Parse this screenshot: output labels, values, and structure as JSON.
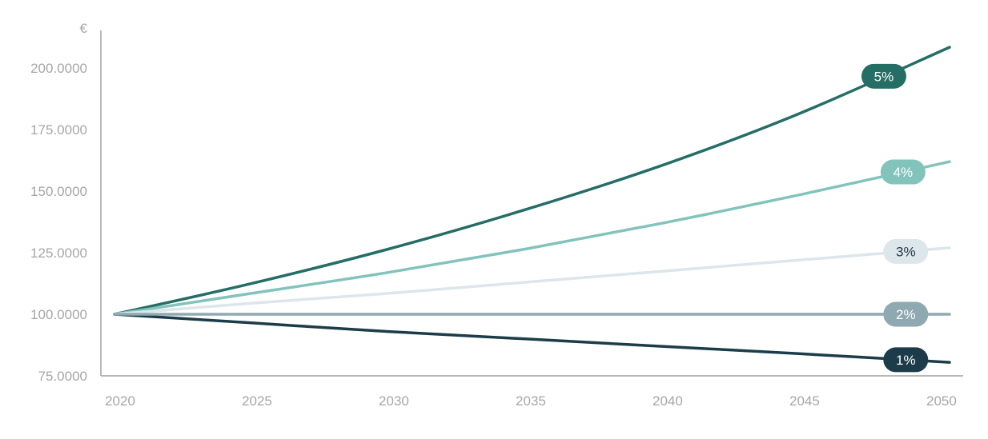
{
  "chart_data": {
    "type": "line",
    "y_unit": "€",
    "x_ticks": [
      "2020",
      "2025",
      "2030",
      "2035",
      "2040",
      "2045",
      "2050"
    ],
    "y_ticks": [
      "75.0000",
      "100.0000",
      "125.0000",
      "150.0000",
      "175.0000",
      "200.0000"
    ],
    "xlim": [
      2020,
      2050.5
    ],
    "ylim": [
      75000,
      216000
    ],
    "x": [
      2020,
      2025,
      2030,
      2035,
      2040,
      2045,
      2050.5
    ],
    "series": [
      {
        "name": "5%",
        "color": "#256e66",
        "label_color": "#ffffff",
        "label_x": 2048.1,
        "values": [
          100000,
          112500,
          126500,
          142500,
          160500,
          181500,
          208500
        ]
      },
      {
        "name": "4%",
        "color": "#82c4bb",
        "label_color": "#ffffff",
        "label_x": 2048.8,
        "values": [
          100000,
          108500,
          117000,
          126500,
          137000,
          148500,
          162000
        ]
      },
      {
        "name": "3%",
        "color": "#dde6ea",
        "label_color": "#1f3a46",
        "label_x": 2048.9,
        "values": [
          100000,
          104500,
          108500,
          113000,
          117500,
          122000,
          127000
        ]
      },
      {
        "name": "2%",
        "color": "#8ea9b1",
        "label_color": "#ffffff",
        "label_x": 2048.9,
        "values": [
          100000,
          100000,
          100000,
          100000,
          100000,
          100000,
          100000
        ]
      },
      {
        "name": "1%",
        "color": "#1b3c48",
        "label_color": "#ffffff",
        "label_x": 2048.9,
        "values": [
          100000,
          96500,
          93000,
          90000,
          87000,
          84000,
          80500
        ]
      }
    ]
  }
}
